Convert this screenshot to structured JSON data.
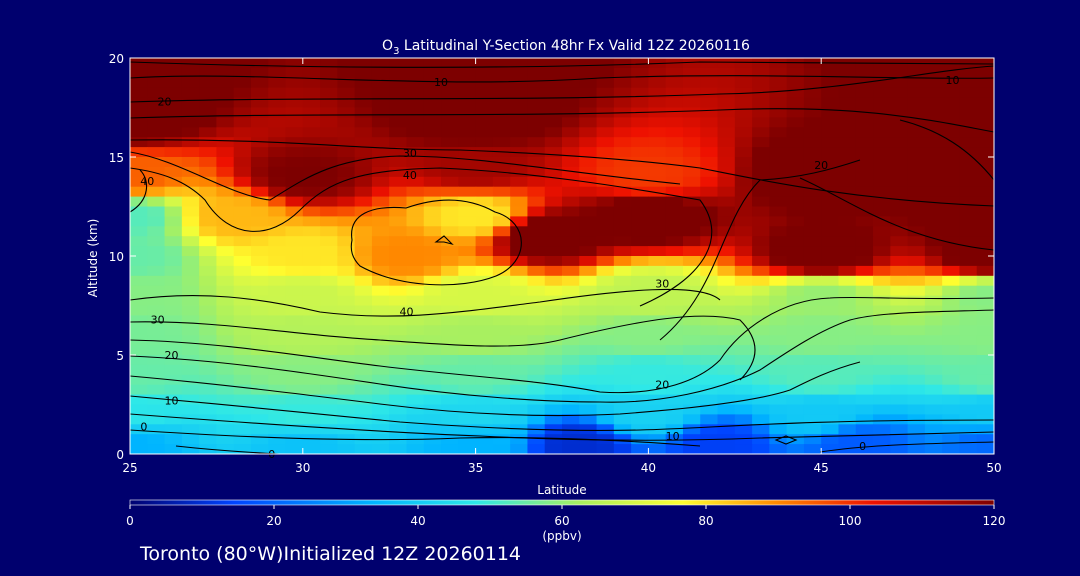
{
  "chart_data": {
    "type": "heatmap",
    "title_species_base": "O",
    "title_species_sub": "3",
    "title_rest": " Latitudinal Y-Section 48hr  Fx Valid 12Z 20260116",
    "xlabel": "Latitude",
    "ylabel": "Altitude (km)",
    "xlim": [
      25,
      50
    ],
    "ylim": [
      0,
      20
    ],
    "xticks": [
      25,
      30,
      35,
      40,
      45,
      50
    ],
    "yticks": [
      0,
      5,
      10,
      15,
      20
    ],
    "colorbar": {
      "min": 0,
      "max": 120,
      "ticks": [
        0,
        20,
        40,
        60,
        80,
        100,
        120
      ],
      "unit_label": "(ppbv)",
      "colors": [
        "#000070",
        "#0044ff",
        "#00b4ff",
        "#2ee8e8",
        "#a8f060",
        "#ffff30",
        "#ff8800",
        "#ee1100",
        "#7d0000"
      ]
    },
    "contour_color": "#000000",
    "contour_labels": [
      {
        "text": "10",
        "x": 34.0,
        "y": 18.8
      },
      {
        "text": "20",
        "x": 26.0,
        "y": 17.8
      },
      {
        "text": "10",
        "x": 48.8,
        "y": 18.9
      },
      {
        "text": "30",
        "x": 33.1,
        "y": 15.2
      },
      {
        "text": "40",
        "x": 33.1,
        "y": 14.1
      },
      {
        "text": "40",
        "x": 25.5,
        "y": 13.8
      },
      {
        "text": "20",
        "x": 45.0,
        "y": 14.6
      },
      {
        "text": "30",
        "x": 40.4,
        "y": 8.6
      },
      {
        "text": "40",
        "x": 33.0,
        "y": 7.2
      },
      {
        "text": "30",
        "x": 25.8,
        "y": 6.8
      },
      {
        "text": "20",
        "x": 26.2,
        "y": 5.0
      },
      {
        "text": "10",
        "x": 26.2,
        "y": 2.7
      },
      {
        "text": "0",
        "x": 25.4,
        "y": 1.4
      },
      {
        "text": "20",
        "x": 40.4,
        "y": 3.5
      },
      {
        "text": "10",
        "x": 40.7,
        "y": 0.9
      },
      {
        "text": "0",
        "x": 29.1,
        "y": 0.0
      },
      {
        "text": "0",
        "x": 46.2,
        "y": 0.4
      }
    ],
    "field": {
      "description_points": "ozone concentration field in ppbv sampled at latitude x, altitude y",
      "points": [
        [
          25,
          0.5,
          30
        ],
        [
          30,
          0.5,
          34
        ],
        [
          35,
          0.5,
          30
        ],
        [
          38,
          0.5,
          10
        ],
        [
          42,
          0.5,
          14
        ],
        [
          46,
          0.5,
          18
        ],
        [
          50,
          0.5,
          20
        ],
        [
          25,
          2,
          44
        ],
        [
          30,
          2,
          46
        ],
        [
          35,
          2,
          40
        ],
        [
          40,
          2,
          38
        ],
        [
          45,
          2,
          36
        ],
        [
          50,
          2,
          36
        ],
        [
          25,
          4,
          52
        ],
        [
          30,
          4,
          56
        ],
        [
          35,
          4,
          52
        ],
        [
          40,
          4,
          46
        ],
        [
          45,
          4,
          50
        ],
        [
          50,
          4,
          52
        ],
        [
          25,
          6,
          54
        ],
        [
          30,
          6,
          62
        ],
        [
          35,
          6,
          60
        ],
        [
          40,
          6,
          56
        ],
        [
          45,
          6,
          56
        ],
        [
          50,
          6,
          56
        ],
        [
          25,
          8,
          56
        ],
        [
          30,
          8,
          66
        ],
        [
          35,
          8,
          68
        ],
        [
          40,
          8,
          64
        ],
        [
          45,
          8,
          58
        ],
        [
          50,
          8,
          56
        ],
        [
          25,
          10,
          52
        ],
        [
          30,
          10,
          78
        ],
        [
          33,
          10,
          90
        ],
        [
          37,
          11,
          125
        ],
        [
          45,
          10,
          125
        ],
        [
          50,
          10,
          125
        ],
        [
          25,
          12,
          50
        ],
        [
          28,
          12,
          84
        ],
        [
          35,
          12,
          78
        ],
        [
          40,
          12,
          125
        ],
        [
          50,
          12,
          125
        ],
        [
          25,
          14,
          95
        ],
        [
          30,
          14,
          120
        ],
        [
          35,
          14.5,
          115
        ],
        [
          40,
          14,
          100
        ],
        [
          45,
          14,
          125
        ],
        [
          50,
          14,
          125
        ],
        [
          25,
          17,
          125
        ],
        [
          35,
          17,
          125
        ],
        [
          50,
          17,
          125
        ],
        [
          25,
          20,
          125
        ],
        [
          35,
          20,
          125
        ],
        [
          50,
          20,
          125
        ]
      ]
    }
  },
  "footer": {
    "location": "Toronto (80°W)",
    "initialized": "Initialized 12Z 20260114"
  }
}
